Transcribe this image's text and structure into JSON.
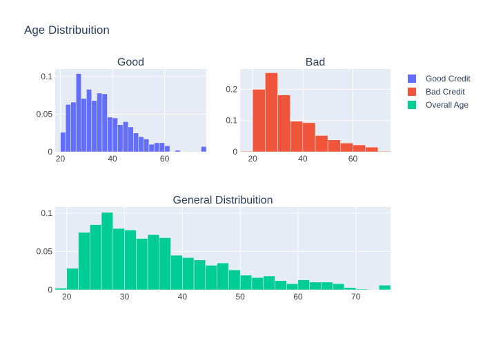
{
  "title": "Age Distribuition",
  "colors": {
    "plot_bg": "#e5ecf6",
    "grid": "#ffffff",
    "text": "#2a3f5f",
    "tick": "#444444",
    "good": "#636efa",
    "bad": "#ef553b",
    "overall": "#00cc96"
  },
  "legend": {
    "placement": "top-right",
    "items": [
      {
        "label": "Good Credit",
        "color_key": "good"
      },
      {
        "label": "Bad Credit",
        "color_key": "bad"
      },
      {
        "label": "Overall Age",
        "color_key": "overall"
      }
    ]
  },
  "chart_data": [
    {
      "type": "bar",
      "title": "Good",
      "series_name": "Good Credit",
      "color_key": "good",
      "bin_start": 18,
      "bin_width": 2,
      "values": [
        0.0,
        0.026,
        0.063,
        0.066,
        0.104,
        0.071,
        0.083,
        0.068,
        0.078,
        0.077,
        0.046,
        0.045,
        0.036,
        0.04,
        0.033,
        0.025,
        0.02,
        0.017,
        0.01,
        0.012,
        0.012,
        0.008,
        0.0,
        0.002,
        0.0,
        0.0,
        0.0,
        0.0,
        0.007
      ],
      "xlim": [
        18,
        76
      ],
      "ylim": [
        0,
        0.11
      ],
      "xticks": [
        20,
        40,
        60
      ],
      "xtick_labels": [
        "20",
        "40",
        "60"
      ],
      "yticks": [
        0,
        0.05,
        0.1
      ],
      "ytick_labels": [
        "0",
        "0.05",
        "0.1"
      ]
    },
    {
      "type": "bar",
      "title": "Bad",
      "series_name": "Bad Credit",
      "color_key": "bad",
      "bin_start": 15,
      "bin_width": 5,
      "values": [
        0.002,
        0.2,
        0.253,
        0.182,
        0.098,
        0.093,
        0.052,
        0.038,
        0.028,
        0.022,
        0.015,
        0.002
      ],
      "xlim": [
        15,
        75
      ],
      "ylim": [
        0,
        0.265
      ],
      "xticks": [
        20,
        40,
        60
      ],
      "xtick_labels": [
        "20",
        "40",
        "60"
      ],
      "yticks": [
        0,
        0.1,
        0.2
      ],
      "ytick_labels": [
        "0",
        "0.1",
        "0.2"
      ]
    },
    {
      "type": "bar",
      "title": "General Distribuition",
      "series_name": "Overall Age",
      "color_key": "overall",
      "bin_start": 18,
      "bin_width": 2,
      "values": [
        0.002,
        0.028,
        0.075,
        0.085,
        0.101,
        0.08,
        0.078,
        0.067,
        0.072,
        0.068,
        0.045,
        0.042,
        0.039,
        0.032,
        0.035,
        0.026,
        0.019,
        0.016,
        0.018,
        0.012,
        0.008,
        0.013,
        0.01,
        0.01,
        0.008,
        0.003,
        0.001,
        0.0,
        0.006
      ],
      "xlim": [
        18,
        76
      ],
      "ylim": [
        0,
        0.108
      ],
      "xticks": [
        20,
        30,
        40,
        50,
        60,
        70
      ],
      "xtick_labels": [
        "20",
        "30",
        "40",
        "50",
        "60",
        "70"
      ],
      "yticks": [
        0,
        0.05,
        0.1
      ],
      "ytick_labels": [
        "0",
        "0.05",
        "0.1"
      ]
    }
  ]
}
